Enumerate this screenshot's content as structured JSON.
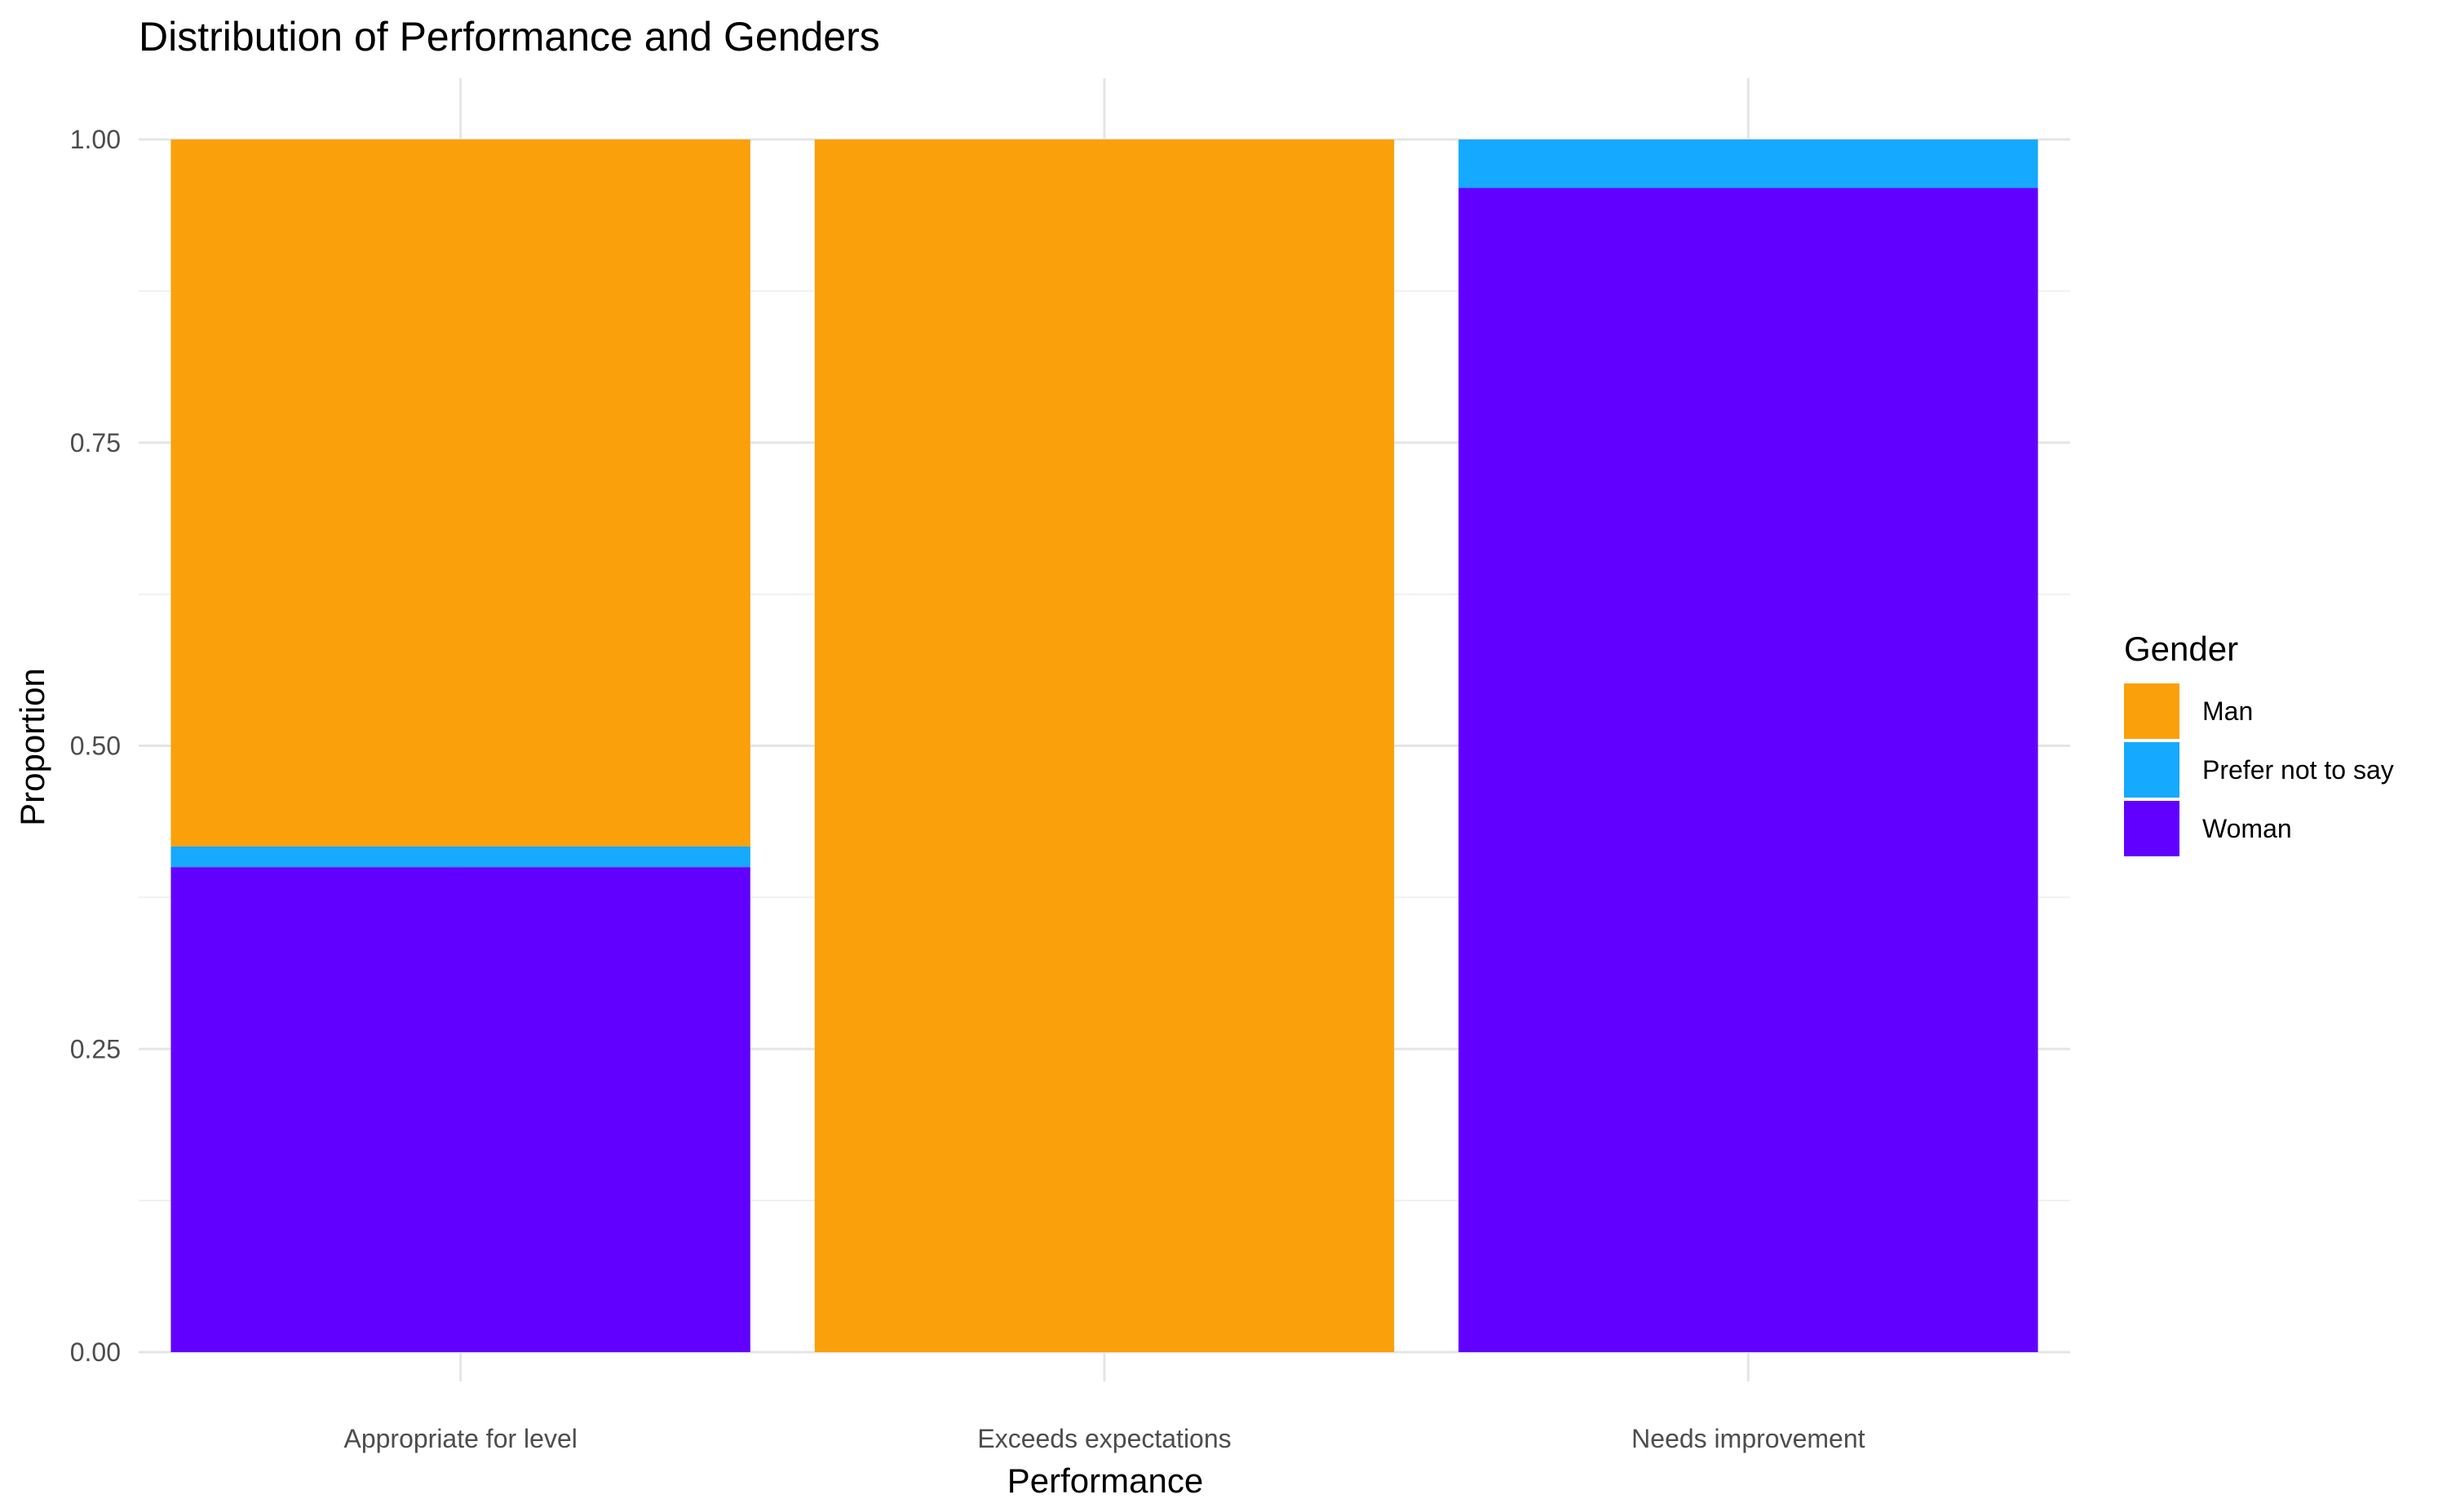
{
  "chart_data": {
    "type": "bar",
    "stacked": "fill",
    "title": "Distribution of Performance and Genders",
    "xlabel": "Performance",
    "ylabel": "Proportion",
    "ylim": [
      0,
      1
    ],
    "yticks": [
      "0.00",
      "0.25",
      "0.50",
      "0.75",
      "1.00"
    ],
    "categories": [
      "Appropriate for level",
      "Exceeds expectations",
      "Needs improvement"
    ],
    "series": [
      {
        "name": "Woman",
        "color": "#6200FF",
        "values": [
          0.4,
          0.0,
          0.96
        ]
      },
      {
        "name": "Prefer not to say",
        "color": "#15A9FF",
        "values": [
          0.017,
          0.0,
          0.04
        ]
      },
      {
        "name": "Man",
        "color": "#FAA00A",
        "values": [
          0.583,
          1.0,
          0.0
        ]
      }
    ],
    "legend": {
      "title": "Gender",
      "position": "right",
      "entries": [
        "Man",
        "Prefer not to say",
        "Woman"
      ]
    },
    "grid": true
  }
}
